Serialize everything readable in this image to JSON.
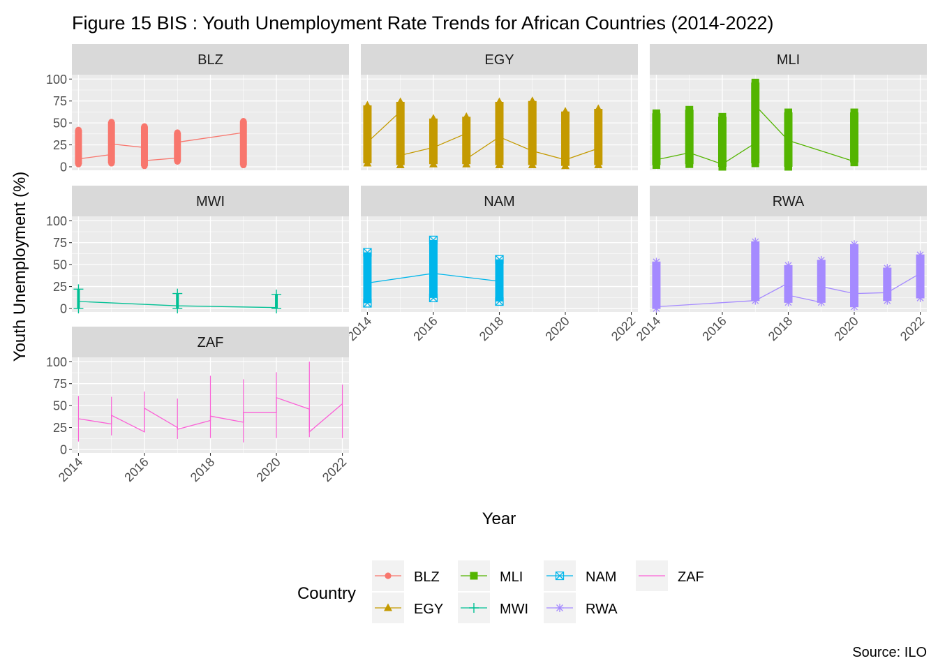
{
  "chart_data": {
    "type": "line",
    "title": "Figure 15 BIS : Youth Unemployment Rate Trends for African Countries (2014-2022)",
    "xlabel": "Year",
    "ylabel": "Youth Unemployment (%)",
    "caption": "Source: ILO",
    "xlim": [
      2013.8,
      2022.2
    ],
    "ylim": [
      -4,
      105
    ],
    "x_ticks": [
      2014,
      2016,
      2018,
      2020,
      2022
    ],
    "y_ticks": [
      0,
      25,
      50,
      75,
      100
    ],
    "grid": true,
    "legend": {
      "title": "Country",
      "position": "bottom",
      "ncol": 4
    },
    "series": [
      {
        "name": "BLZ",
        "color": "#F8766D",
        "marker": "circle",
        "line": [
          [
            2014,
            9
          ],
          [
            2015,
            14
          ],
          [
            2015,
            26
          ],
          [
            2016,
            22
          ],
          [
            2016,
            7
          ],
          [
            2017,
            10
          ],
          [
            2017,
            28
          ],
          [
            2019,
            39
          ]
        ],
        "points": [
          [
            2014,
            3
          ],
          [
            2014,
            42
          ],
          [
            2015,
            4
          ],
          [
            2015,
            51
          ],
          [
            2016,
            1
          ],
          [
            2016,
            46
          ],
          [
            2017,
            6
          ],
          [
            2017,
            39
          ],
          [
            2019,
            2
          ],
          [
            2019,
            52
          ]
        ]
      },
      {
        "name": "EGY",
        "color": "#C49A00",
        "marker": "triangle",
        "line": [
          [
            2014,
            28
          ],
          [
            2015,
            63
          ],
          [
            2015,
            13
          ],
          [
            2016,
            22
          ],
          [
            2017,
            38
          ],
          [
            2017,
            9
          ],
          [
            2018,
            34
          ],
          [
            2019,
            18
          ],
          [
            2020,
            8
          ],
          [
            2021,
            21
          ]
        ],
        "points": [
          [
            2014,
            4
          ],
          [
            2014,
            70
          ],
          [
            2015,
            2
          ],
          [
            2015,
            74
          ],
          [
            2016,
            3
          ],
          [
            2016,
            55
          ],
          [
            2017,
            3
          ],
          [
            2017,
            57
          ],
          [
            2018,
            2
          ],
          [
            2018,
            74
          ],
          [
            2019,
            2
          ],
          [
            2019,
            75
          ],
          [
            2020,
            1
          ],
          [
            2020,
            63
          ],
          [
            2021,
            2
          ],
          [
            2021,
            66
          ]
        ]
      },
      {
        "name": "MLI",
        "color": "#53B400",
        "marker": "square",
        "line": [
          [
            2014,
            8
          ],
          [
            2015,
            16
          ],
          [
            2016,
            3
          ],
          [
            2017,
            27
          ],
          [
            2017,
            70
          ],
          [
            2018,
            30
          ],
          [
            2019,
            18
          ],
          [
            2020,
            6
          ]
        ],
        "points": [
          [
            2014,
            2
          ],
          [
            2014,
            61
          ],
          [
            2015,
            3
          ],
          [
            2015,
            65
          ],
          [
            2016,
            0
          ],
          [
            2016,
            57
          ],
          [
            2017,
            4
          ],
          [
            2017,
            96
          ],
          [
            2018,
            0
          ],
          [
            2018,
            62
          ],
          [
            2020,
            5
          ],
          [
            2020,
            62
          ]
        ]
      },
      {
        "name": "MWI",
        "color": "#00C094",
        "marker": "plus",
        "line": [
          [
            2014,
            8
          ],
          [
            2017,
            3
          ],
          [
            2020,
            1
          ]
        ],
        "points": [
          [
            2014,
            0
          ],
          [
            2014,
            22
          ],
          [
            2017,
            0
          ],
          [
            2017,
            17
          ],
          [
            2020,
            0
          ],
          [
            2020,
            16
          ]
        ]
      },
      {
        "name": "NAM",
        "color": "#00B6EB",
        "marker": "square-x",
        "line": [
          [
            2014,
            29
          ],
          [
            2016,
            40
          ],
          [
            2018,
            31
          ]
        ],
        "points": [
          [
            2014,
            6
          ],
          [
            2014,
            64
          ],
          [
            2016,
            12
          ],
          [
            2016,
            78
          ],
          [
            2018,
            8
          ],
          [
            2018,
            56
          ]
        ]
      },
      {
        "name": "RWA",
        "color": "#A58AFF",
        "marker": "asterisk",
        "line": [
          [
            2014,
            2
          ],
          [
            2017,
            9
          ],
          [
            2018,
            29
          ],
          [
            2018,
            15
          ],
          [
            2019,
            7
          ],
          [
            2019,
            25
          ],
          [
            2020,
            17
          ],
          [
            2021,
            18
          ],
          [
            2022,
            40
          ]
        ],
        "points": [
          [
            2014,
            0
          ],
          [
            2014,
            53
          ],
          [
            2017,
            9
          ],
          [
            2017,
            76
          ],
          [
            2018,
            7
          ],
          [
            2018,
            49
          ],
          [
            2019,
            7
          ],
          [
            2019,
            55
          ],
          [
            2020,
            2
          ],
          [
            2020,
            73
          ],
          [
            2021,
            9
          ],
          [
            2021,
            46
          ],
          [
            2022,
            12
          ],
          [
            2022,
            61
          ]
        ]
      },
      {
        "name": "ZAF",
        "color": "#FB61D7",
        "marker": "none",
        "line": [
          [
            2014,
            35
          ],
          [
            2015,
            29
          ],
          [
            2015,
            39
          ],
          [
            2016,
            20
          ],
          [
            2016,
            47
          ],
          [
            2017,
            25
          ],
          [
            2017,
            23
          ],
          [
            2018,
            33
          ],
          [
            2018,
            38
          ],
          [
            2019,
            31
          ],
          [
            2019,
            42
          ],
          [
            2020,
            42
          ],
          [
            2020,
            59
          ],
          [
            2021,
            46
          ],
          [
            2021,
            20
          ],
          [
            2022,
            52
          ]
        ],
        "ranges": [
          [
            2014,
            9,
            61
          ],
          [
            2015,
            16,
            60
          ],
          [
            2016,
            20,
            66
          ],
          [
            2017,
            12,
            58
          ],
          [
            2018,
            13,
            84
          ],
          [
            2019,
            8,
            80
          ],
          [
            2020,
            13,
            88
          ],
          [
            2021,
            14,
            100
          ],
          [
            2022,
            13,
            74
          ]
        ]
      }
    ]
  }
}
